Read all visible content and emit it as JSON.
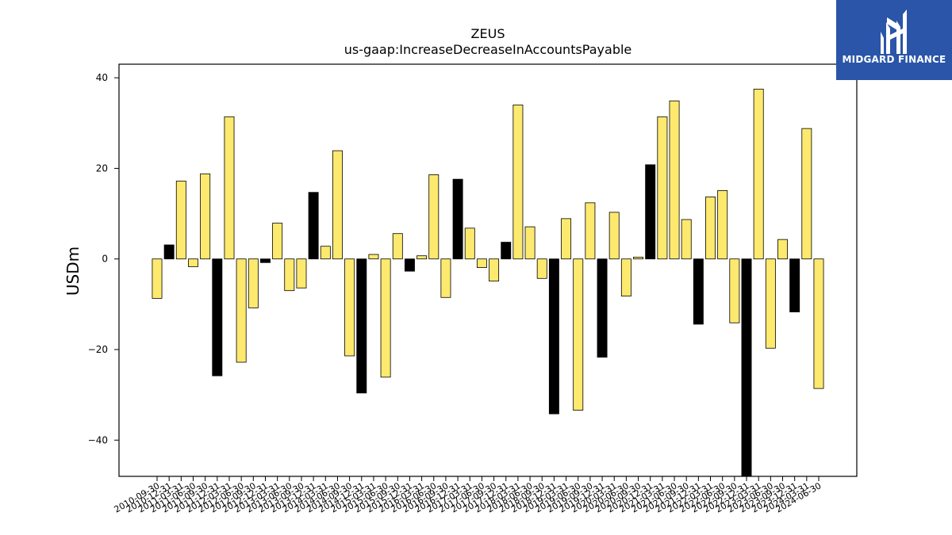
{
  "brand": {
    "name": "MIDGARD FINANCE",
    "background_color": "#2a55a8",
    "icon": "midgard-logo-icon"
  },
  "chart_data": {
    "type": "bar",
    "title": "ZEUS",
    "subtitle": "us-gaap:IncreaseDecreaseInAccountsPayable",
    "ylabel": "USDm",
    "xlabel": "",
    "ylim": [
      -48,
      43
    ],
    "yticks": [
      40,
      20,
      0,
      -20,
      -40
    ],
    "ytick_labels": [
      "40",
      "20",
      "0",
      "−20",
      "−40"
    ],
    "grid": false,
    "colors": {
      "yellow": "#fde96e",
      "black": "#000000",
      "edge": "#000000"
    },
    "categories": [
      "2010-09-30",
      "2010-12-31",
      "2011-03-31",
      "2011-06-30",
      "2011-09-30",
      "2011-12-31",
      "2012-03-31",
      "2012-06-30",
      "2012-09-30",
      "2012-12-31",
      "2013-03-31",
      "2013-06-30",
      "2013-09-30",
      "2013-12-31",
      "2014-03-31",
      "2014-06-30",
      "2014-09-30",
      "2014-12-31",
      "2015-03-31",
      "2015-06-30",
      "2015-09-30",
      "2015-12-31",
      "2016-03-31",
      "2016-06-30",
      "2016-09-30",
      "2016-12-31",
      "2017-03-31",
      "2017-06-30",
      "2017-09-30",
      "2017-12-31",
      "2018-03-31",
      "2018-06-30",
      "2018-09-30",
      "2018-12-31",
      "2019-03-31",
      "2019-06-30",
      "2019-09-30",
      "2019-12-31",
      "2020-03-31",
      "2020-06-30",
      "2020-09-30",
      "2020-12-31",
      "2021-03-31",
      "2021-06-30",
      "2021-09-30",
      "2021-12-31",
      "2022-03-31",
      "2022-06-30",
      "2022-09-30",
      "2022-12-31",
      "2023-03-31",
      "2023-06-30",
      "2023-09-30",
      "2023-12-31",
      "2024-03-31",
      "2024-06-30"
    ],
    "values": [
      -8.7,
      3.1,
      17.2,
      -1.7,
      18.8,
      -25.8,
      31.4,
      -22.8,
      -10.8,
      -0.8,
      7.9,
      -7.0,
      -6.4,
      14.7,
      2.8,
      23.9,
      -21.4,
      -29.6,
      1.0,
      -26.1,
      5.6,
      -2.7,
      0.7,
      18.6,
      -8.5,
      17.6,
      6.8,
      -1.9,
      -4.9,
      3.7,
      34.0,
      7.1,
      -4.3,
      -34.2,
      8.9,
      -33.4,
      12.4,
      -21.7,
      10.3,
      -8.2,
      0.4,
      20.8,
      31.4,
      34.9,
      8.7,
      -14.4,
      13.7,
      15.1,
      -14.1,
      -48.0,
      37.5,
      -19.7,
      4.3,
      -11.7,
      28.8,
      -28.6
    ],
    "bar_colors": [
      "yellow",
      "black",
      "yellow",
      "yellow",
      "yellow",
      "black",
      "yellow",
      "yellow",
      "yellow",
      "black",
      "yellow",
      "yellow",
      "yellow",
      "black",
      "yellow",
      "yellow",
      "yellow",
      "black",
      "yellow",
      "yellow",
      "yellow",
      "black",
      "yellow",
      "yellow",
      "yellow",
      "black",
      "yellow",
      "yellow",
      "yellow",
      "black",
      "yellow",
      "yellow",
      "yellow",
      "black",
      "yellow",
      "yellow",
      "yellow",
      "black",
      "yellow",
      "yellow",
      "yellow",
      "black",
      "yellow",
      "yellow",
      "yellow",
      "black",
      "yellow",
      "yellow",
      "yellow",
      "black",
      "yellow",
      "yellow",
      "yellow",
      "black",
      "yellow",
      "yellow"
    ]
  }
}
